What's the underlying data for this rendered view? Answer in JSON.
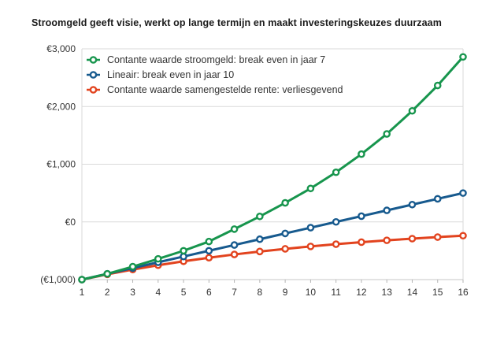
{
  "title": "Stroomgeld geeft visie, werkt op lange termijn en maakt investeringskeuzes duurzaam",
  "colors": {
    "background": "#ffffff",
    "grid": "#d9d9d9",
    "axis": "#c7c7c7",
    "tick": "#b3b3b3",
    "label_text": "#333333",
    "title_text": "#1a1a1a"
  },
  "chart_data": {
    "type": "line",
    "title": "Stroomgeld geeft visie, werkt op lange termijn en maakt investeringskeuzes duurzaam",
    "xlabel": "",
    "ylabel": "",
    "x": [
      1,
      2,
      3,
      4,
      5,
      6,
      7,
      8,
      9,
      10,
      11,
      12,
      13,
      14,
      15,
      16
    ],
    "xtick_labels": [
      "1",
      "2",
      "3",
      "4",
      "5",
      "6",
      "7",
      "8",
      "9",
      "10",
      "11",
      "12",
      "13",
      "14",
      "15",
      "16"
    ],
    "ylim": [
      -1000,
      3000
    ],
    "ytick_values": [
      -1000,
      0,
      1000,
      2000,
      3000
    ],
    "ytick_labels": [
      "(€1,000)",
      "€0",
      "€1,000",
      "€2,000",
      "€3,000"
    ],
    "grid": "horizontal-only",
    "legend_position": "top-left-inside",
    "marker": "open-circle",
    "series": [
      {
        "name": "Contante waarde stroomgeld: break even in jaar 7",
        "color": "#17954d",
        "values": [
          -1000,
          -900,
          -775,
          -640,
          -500,
          -340,
          -125,
          95,
          330,
          580,
          860,
          1175,
          1525,
          1925,
          2365,
          2860
        ]
      },
      {
        "name": "Lineair: break even in jaar 10",
        "color": "#175a8e",
        "values": [
          -1000,
          -900,
          -800,
          -700,
          -600,
          -500,
          -400,
          -300,
          -200,
          -100,
          0,
          100,
          200,
          300,
          400,
          500
        ]
      },
      {
        "name": "Contante waarde samengestelde rente: verliesgevend",
        "color": "#e2431e",
        "values": [
          -1000,
          -909,
          -826,
          -751,
          -683,
          -621,
          -564,
          -513,
          -467,
          -425,
          -386,
          -351,
          -319,
          -290,
          -263,
          -239
        ]
      }
    ]
  }
}
